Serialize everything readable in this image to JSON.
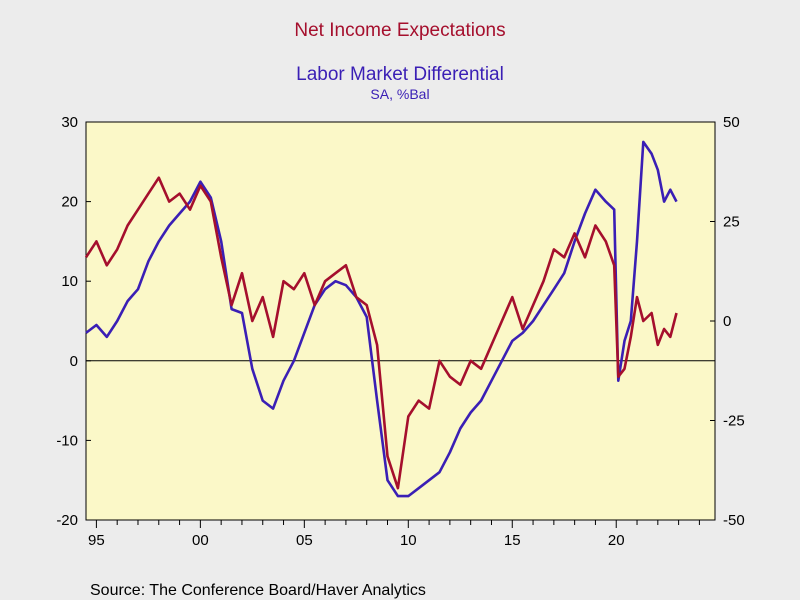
{
  "chart_data": {
    "type": "line",
    "title_1": "Net Income Expectations",
    "title_2": "Labor Market Differential",
    "subtitle": "SA, %Bal",
    "source": "Source:  The Conference Board/Haver Analytics",
    "x_tick_labels": [
      "95",
      "00",
      "05",
      "10",
      "15",
      "20"
    ],
    "xlim": [
      1994.5,
      2024.75
    ],
    "left_axis": {
      "ylim": [
        -20,
        30
      ],
      "ticks": [
        -20,
        -10,
        0,
        10,
        20,
        30
      ],
      "tick_labels": [
        "-20",
        "-10",
        "0",
        "10",
        "20",
        "30"
      ]
    },
    "right_axis": {
      "ylim": [
        -50,
        50
      ],
      "ticks": [
        -50,
        -25,
        0,
        25,
        50
      ],
      "tick_labels": [
        "-50",
        "-25",
        "0",
        "25",
        "50"
      ]
    },
    "grid": false,
    "colors": {
      "series_left": "#a50f2d",
      "series_right": "#3a1fb5",
      "title_1": "#a50f2d",
      "title_2": "#3a1fb5",
      "plot_bg": "#fbf8c8",
      "page_bg": "#ececec"
    },
    "series": [
      {
        "name": "Net Income Expectations",
        "axis": "left",
        "x": [
          1994.5,
          1995,
          1995.5,
          1996,
          1996.5,
          1997,
          1997.5,
          1998,
          1998.5,
          1999,
          1999.5,
          2000,
          2000.5,
          2001,
          2001.5,
          2002,
          2002.5,
          2003,
          2003.5,
          2004,
          2004.5,
          2005,
          2005.5,
          2006,
          2006.5,
          2007,
          2007.5,
          2008,
          2008.5,
          2009,
          2009.5,
          2010,
          2010.5,
          2011,
          2011.5,
          2012,
          2012.5,
          2013,
          2013.5,
          2014,
          2014.5,
          2015,
          2015.5,
          2016,
          2016.5,
          2017,
          2017.5,
          2018,
          2018.5,
          2019,
          2019.5,
          2019.9,
          2020.1,
          2020.4,
          2020.7,
          2021,
          2021.3,
          2021.7,
          2022,
          2022.3,
          2022.6,
          2022.9
        ],
        "values": [
          13,
          15,
          12,
          14,
          17,
          19,
          21,
          23,
          20,
          21,
          19,
          22,
          20,
          13,
          7,
          11,
          5,
          8,
          3,
          10,
          9,
          11,
          7,
          10,
          11,
          12,
          8,
          7,
          2,
          -12,
          -16,
          -7,
          -5,
          -6,
          0,
          -2,
          -3,
          0,
          -1,
          2,
          5,
          8,
          4,
          7,
          10,
          14,
          13,
          16,
          13,
          17,
          15,
          12,
          -2,
          -1,
          3,
          8,
          5,
          6,
          2,
          4,
          3,
          6
        ]
      },
      {
        "name": "Labor Market Differential",
        "axis": "right",
        "x": [
          1994.5,
          1995,
          1995.5,
          1996,
          1996.5,
          1997,
          1997.5,
          1998,
          1998.5,
          1999,
          1999.5,
          2000,
          2000.5,
          2001,
          2001.5,
          2002,
          2002.5,
          2003,
          2003.5,
          2004,
          2004.5,
          2005,
          2005.5,
          2006,
          2006.5,
          2007,
          2007.5,
          2008,
          2008.5,
          2009,
          2009.5,
          2010,
          2010.5,
          2011,
          2011.5,
          2012,
          2012.5,
          2013,
          2013.5,
          2014,
          2014.5,
          2015,
          2015.5,
          2016,
          2016.5,
          2017,
          2017.5,
          2018,
          2018.5,
          2019,
          2019.5,
          2019.9,
          2020.1,
          2020.4,
          2020.7,
          2021,
          2021.3,
          2021.7,
          2022,
          2022.3,
          2022.6,
          2022.9
        ],
        "values": [
          -3,
          -1,
          -4,
          0,
          5,
          8,
          15,
          20,
          24,
          27,
          30,
          35,
          31,
          20,
          3,
          2,
          -12,
          -20,
          -22,
          -15,
          -10,
          -3,
          4,
          8,
          10,
          9,
          6,
          1,
          -20,
          -40,
          -44,
          -44,
          -42,
          -40,
          -38,
          -33,
          -27,
          -23,
          -20,
          -15,
          -10,
          -5,
          -3,
          0,
          4,
          8,
          12,
          20,
          27,
          33,
          30,
          28,
          -15,
          -5,
          0,
          20,
          45,
          42,
          38,
          30,
          33,
          30
        ]
      }
    ]
  }
}
